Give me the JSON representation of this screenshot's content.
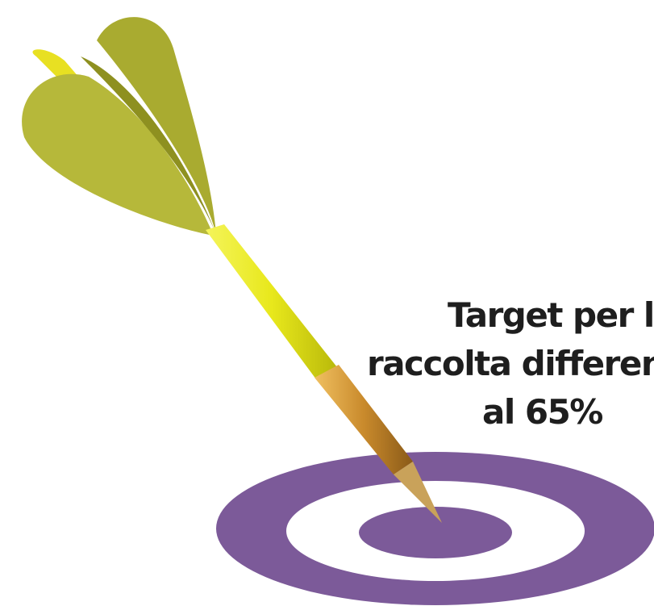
{
  "caption": {
    "lines": [
      "Target per la",
      "raccolta differen",
      "al 65%"
    ]
  }
}
